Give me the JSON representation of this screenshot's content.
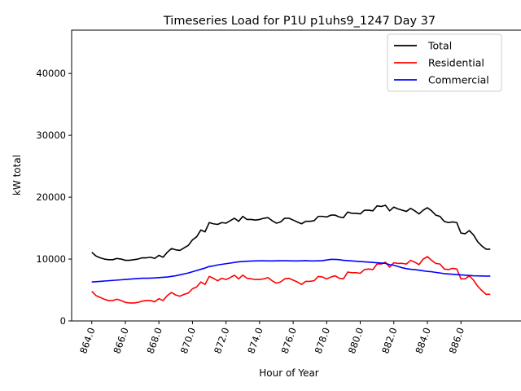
{
  "chart_data": {
    "type": "line",
    "title": "Timeseries Load for P1U p1uhs9_1247  Day 37",
    "xlabel": "Hour of Year",
    "ylabel": "kW total",
    "xlim": [
      862.8,
      888.9
    ],
    "ylim": [
      0,
      47000
    ],
    "xticks": [
      864.0,
      866.0,
      868.0,
      870.0,
      872.0,
      874.0,
      876.0,
      878.0,
      880.0,
      882.0,
      884.0,
      886.0
    ],
    "xtick_labels": [
      "864.0",
      "866.0",
      "868.0",
      "870.0",
      "872.0",
      "874.0",
      "876.0",
      "878.0",
      "880.0",
      "882.0",
      "884.0",
      "886.0"
    ],
    "yticks": [
      0,
      10000,
      20000,
      30000,
      40000
    ],
    "ytick_labels": [
      "0",
      "10000",
      "20000",
      "30000",
      "40000"
    ],
    "legend_position": "top-right",
    "x": [
      864.0,
      864.25,
      864.5,
      864.75,
      865.0,
      865.25,
      865.5,
      865.75,
      866.0,
      866.25,
      866.5,
      866.75,
      867.0,
      867.25,
      867.5,
      867.75,
      868.0,
      868.25,
      868.5,
      868.75,
      869.0,
      869.25,
      869.5,
      869.75,
      870.0,
      870.25,
      870.5,
      870.75,
      871.0,
      871.25,
      871.5,
      871.75,
      872.0,
      872.25,
      872.5,
      872.75,
      873.0,
      873.25,
      873.5,
      873.75,
      874.0,
      874.25,
      874.5,
      874.75,
      875.0,
      875.25,
      875.5,
      875.75,
      876.0,
      876.25,
      876.5,
      876.75,
      877.0,
      877.25,
      877.5,
      877.75,
      878.0,
      878.25,
      878.5,
      878.75,
      879.0,
      879.25,
      879.5,
      879.75,
      880.0,
      880.25,
      880.5,
      880.75,
      881.0,
      881.25,
      881.5,
      881.75,
      882.0,
      882.25,
      882.5,
      882.75,
      883.0,
      883.25,
      883.5,
      883.75,
      884.0,
      884.25,
      884.5,
      884.75,
      885.0,
      885.25,
      885.5,
      885.75,
      886.0,
      886.25,
      886.5,
      886.75,
      887.0,
      887.25,
      887.5,
      887.75
    ],
    "series": [
      {
        "name": "Total",
        "color": "#000000",
        "values": [
          11100,
          10500,
          10200,
          10000,
          9900,
          9900,
          10100,
          10000,
          9800,
          9800,
          9900,
          10000,
          10200,
          10200,
          10300,
          10100,
          10600,
          10300,
          11100,
          11700,
          11500,
          11400,
          11800,
          12200,
          13100,
          13600,
          14700,
          14400,
          15900,
          15700,
          15600,
          15900,
          15800,
          16200,
          16600,
          16100,
          16900,
          16400,
          16400,
          16300,
          16400,
          16600,
          16700,
          16200,
          15800,
          16000,
          16600,
          16600,
          16300,
          16000,
          15700,
          16100,
          16100,
          16200,
          16900,
          16900,
          16800,
          17100,
          17100,
          16800,
          16700,
          17600,
          17400,
          17400,
          17300,
          17900,
          17900,
          17800,
          18600,
          18500,
          18700,
          17800,
          18400,
          18100,
          17900,
          17700,
          18200,
          17800,
          17300,
          17900,
          18300,
          17800,
          17100,
          16900,
          16100,
          15900,
          16000,
          15900,
          14200,
          14100,
          14600,
          13900,
          12800,
          12100,
          11600,
          11600
        ]
      },
      {
        "name": "Residential",
        "color": "#ff0000",
        "values": [
          4800,
          4100,
          3800,
          3500,
          3300,
          3300,
          3500,
          3300,
          3000,
          2900,
          2900,
          3000,
          3200,
          3300,
          3300,
          3100,
          3600,
          3300,
          4100,
          4600,
          4200,
          4000,
          4300,
          4500,
          5200,
          5500,
          6300,
          5900,
          7200,
          6900,
          6500,
          6900,
          6700,
          7000,
          7400,
          6800,
          7400,
          6900,
          6800,
          6700,
          6700,
          6800,
          7000,
          6500,
          6100,
          6300,
          6800,
          6900,
          6600,
          6300,
          5900,
          6400,
          6400,
          6500,
          7200,
          7100,
          6800,
          7100,
          7300,
          6900,
          6800,
          7900,
          7800,
          7800,
          7700,
          8300,
          8400,
          8300,
          9200,
          9200,
          9500,
          8700,
          9400,
          9300,
          9300,
          9200,
          9800,
          9500,
          9100,
          10000,
          10400,
          9800,
          9300,
          9200,
          8400,
          8300,
          8500,
          8400,
          6800,
          6800,
          7300,
          6600,
          5600,
          4900,
          4300,
          4300
        ]
      },
      {
        "name": "Commercial",
        "color": "#0000ff",
        "values": [
          6300,
          6350,
          6400,
          6450,
          6500,
          6550,
          6600,
          6650,
          6700,
          6750,
          6800,
          6850,
          6900,
          6900,
          6920,
          6950,
          7000,
          7050,
          7100,
          7200,
          7300,
          7450,
          7600,
          7750,
          7950,
          8150,
          8350,
          8550,
          8800,
          8900,
          9050,
          9150,
          9250,
          9350,
          9450,
          9550,
          9600,
          9650,
          9680,
          9700,
          9720,
          9720,
          9700,
          9700,
          9720,
          9730,
          9730,
          9720,
          9700,
          9700,
          9720,
          9750,
          9700,
          9700,
          9720,
          9750,
          9850,
          9950,
          9950,
          9900,
          9800,
          9750,
          9700,
          9650,
          9600,
          9550,
          9500,
          9450,
          9400,
          9350,
          9300,
          9100,
          9000,
          8800,
          8600,
          8450,
          8350,
          8300,
          8200,
          8100,
          8000,
          7950,
          7850,
          7750,
          7650,
          7600,
          7550,
          7500,
          7450,
          7400,
          7350,
          7300,
          7280,
          7260,
          7250,
          7250
        ]
      }
    ]
  }
}
